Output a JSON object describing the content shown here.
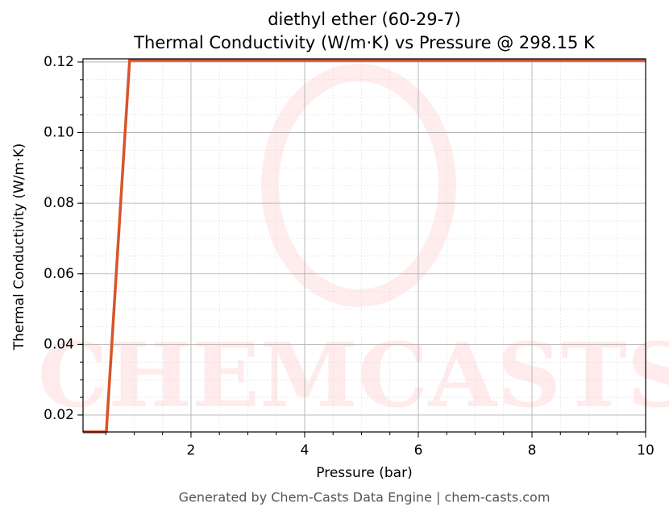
{
  "chart_data": {
    "type": "line",
    "title": "diethyl ether (60-29-7)",
    "subtitle": "Thermal Conductivity (W/m·K) vs Pressure @ 298.15 K",
    "x_label": "Pressure (bar)",
    "y_label": "Thermal Conductivity (W/m·K)",
    "footer": "Generated by Chem-Casts Data Engine | chem-casts.com",
    "watermark": "CHEMCASTS",
    "x": [
      0.1,
      0.51,
      0.92,
      10
    ],
    "series": [
      {
        "name": "Thermal Conductivity",
        "color": "#d9532b",
        "values": [
          0.0152,
          0.0152,
          0.1205,
          0.1205
        ]
      }
    ],
    "xlim": [
      0.1,
      10
    ],
    "xticks": [
      2,
      4,
      6,
      8,
      10
    ],
    "ylim": [
      0.0152,
      0.1209
    ],
    "yticks": [
      0.02,
      0.04,
      0.06,
      0.08,
      {
        "value": 0.1,
        "label": "0.10"
      },
      0.12
    ],
    "grid": true
  }
}
